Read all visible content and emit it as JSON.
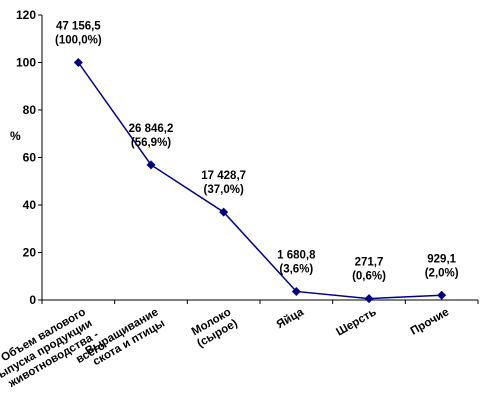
{
  "chart_data": {
    "type": "line",
    "ylabel": "%",
    "ylim": [
      0,
      120
    ],
    "yticks": [
      "0",
      "20",
      "40",
      "60",
      "80",
      "100",
      "120"
    ],
    "grid": false,
    "line_color": "#000080",
    "categories": [
      [
        "Объем валового",
        "выпуска продукции",
        "животноводства -",
        "всего"
      ],
      [
        "Выращивание",
        "скота и птицы"
      ],
      [
        "Молоко",
        "(сырое)"
      ],
      [
        "Яйца"
      ],
      [
        "Шерсть"
      ],
      [
        "Прочие"
      ]
    ],
    "values": [
      100.0,
      56.9,
      37.0,
      3.6,
      0.6,
      2.0
    ],
    "data_labels": [
      [
        "47 156,5",
        "(100,0%)"
      ],
      [
        "26 846,2",
        "(56,9%)"
      ],
      [
        "17 428,7",
        "(37,0%)"
      ],
      [
        "1 680,8",
        "(3,6%)"
      ],
      [
        "271,7",
        "(0,6%)"
      ],
      [
        "929,1",
        "(2,0%)"
      ]
    ]
  }
}
